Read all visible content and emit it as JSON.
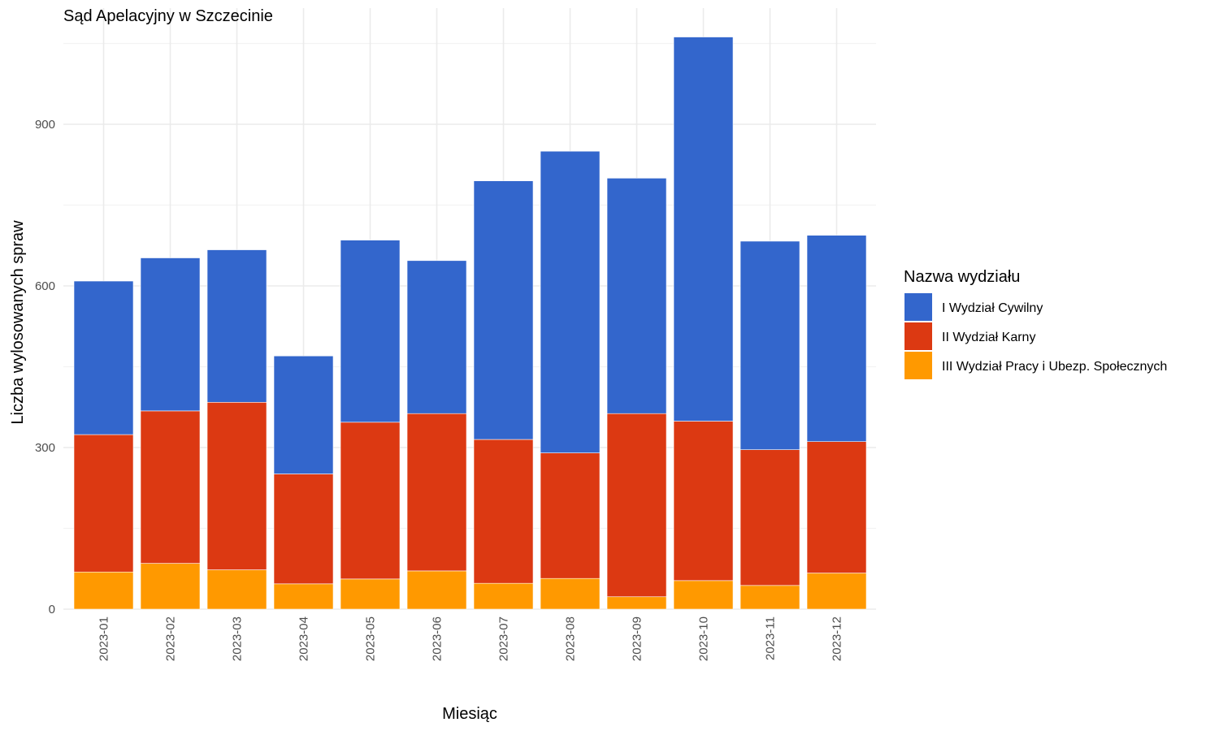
{
  "chart_data": {
    "type": "bar",
    "stacked": true,
    "title": "Sąd Apelacyjny w Szczecinie",
    "xlabel": "Miesiąc",
    "ylabel": "Liczba wylosowanych spraw",
    "ylim": [
      0,
      1100
    ],
    "yticks": [
      0,
      300,
      600,
      900
    ],
    "grid": true,
    "legend_title": "Nazwa wydziału",
    "legend_position": "right",
    "categories": [
      "2023-01",
      "2023-02",
      "2023-03",
      "2023-04",
      "2023-05",
      "2023-06",
      "2023-07",
      "2023-08",
      "2023-09",
      "2023-10",
      "2023-11",
      "2023-12"
    ],
    "series": [
      {
        "name": "I Wydział Cywilny",
        "color": "#3366CC",
        "values": [
          285,
          284,
          283,
          219,
          338,
          284,
          480,
          560,
          437,
          713,
          387,
          383
        ]
      },
      {
        "name": "II Wydział Karny",
        "color": "#DC3912",
        "values": [
          255,
          283,
          311,
          204,
          291,
          292,
          267,
          233,
          340,
          296,
          252,
          244
        ]
      },
      {
        "name": "III Wydział Pracy i Ubezp. Społecznych",
        "color": "#FF9900",
        "values": [
          69,
          85,
          73,
          47,
          56,
          71,
          48,
          57,
          23,
          53,
          44,
          67
        ]
      }
    ]
  }
}
